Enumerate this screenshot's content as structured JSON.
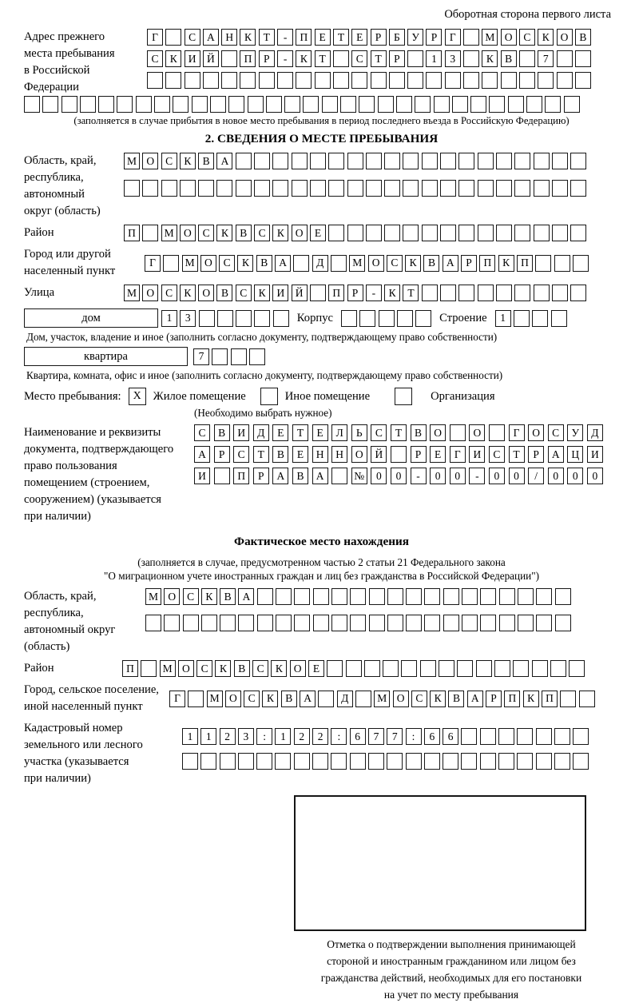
{
  "page": {
    "header_note": "Оборотная сторона первого листа"
  },
  "prev_address": {
    "label_lines": [
      "Адрес прежнего",
      "места пребывания",
      "в Российской",
      "Федерации"
    ],
    "row1": {
      "count": 24,
      "text": "Г САНКТ-ПЕТЕРБУРГ МОСКОВ"
    },
    "row2": {
      "count": 24,
      "text": "СКИЙ ПР-КТ СТР 13 КВ 7"
    },
    "row3": {
      "count": 24,
      "text": ""
    },
    "row4": {
      "count": 30,
      "text": ""
    },
    "caption": "(заполняется в случае прибытия в новое место пребывания в период последнего въезда в Российскую Федерацию)"
  },
  "section2": {
    "title": "2. СВЕДЕНИЯ О МЕСТЕ ПРЕБЫВАНИЯ",
    "region": {
      "label_lines": [
        "Область, край,",
        "республика,",
        "автономный",
        "округ (область)"
      ],
      "row1": {
        "count": 25,
        "text": "МОСКВА"
      },
      "row2": {
        "count": 25,
        "text": ""
      }
    },
    "district": {
      "label": "Район",
      "row": {
        "count": 25,
        "text": "П МОСКВСКОЕ"
      }
    },
    "city": {
      "label_lines": [
        "Город или другой",
        "населенный пункт"
      ],
      "row": {
        "count": 24,
        "text": "Г МОСКВА Д МОСКВАРПКП"
      }
    },
    "street": {
      "label": "Улица",
      "row": {
        "count": 25,
        "text": "МОСКОВСКИЙ ПР-КТ"
      }
    },
    "house": {
      "box_label": "дом",
      "house_cells": {
        "count": 7,
        "text": "13"
      },
      "korpus_label": "Корпус",
      "korpus_cells": {
        "count": 5,
        "text": ""
      },
      "stroenie_label": "Строение",
      "stroenie_cells": {
        "count": 4,
        "text": "1"
      },
      "caption": "Дом, участок, владение и иное (заполнить согласно документу, подтверждающему право собственности)"
    },
    "apartment": {
      "box_label": "квартира",
      "cells": {
        "count": 4,
        "text": "7"
      },
      "caption": "Квартира, комната, офис и иное (заполнить согласно документу, подтверждающему право собственности)"
    },
    "place_type": {
      "label": "Место пребывания:",
      "options": [
        {
          "mark": "X",
          "label": "Жилое помещение"
        },
        {
          "mark": "",
          "label": "Иное помещение"
        },
        {
          "mark": "",
          "label": "Организация"
        }
      ],
      "note": "(Необходимо выбрать нужное)"
    },
    "document": {
      "label_lines": [
        "Наименование и реквизиты",
        "документа, подтверждающего",
        "право пользования",
        "помещением (строением,",
        "сооружением) (указывается",
        "при наличии)"
      ],
      "row1": {
        "count": 21,
        "text": "СВИДЕТЕЛЬСТВО О ГОСУД"
      },
      "row2": {
        "count": 21,
        "text": "АРСТВЕННОЙ РЕГИСТРАЦИ"
      },
      "row3": {
        "count": 21,
        "text": "И ПРАВА №00-00-00/000"
      }
    }
  },
  "section3": {
    "title": "Фактическое место нахождения",
    "note_line1": "(заполняется в случае, предусмотренном частью 2 статьи 21 Федерального закона",
    "note_line2": "\"О миграционном учете иностранных граждан и лиц без гражданства в Российской Федерации\")",
    "region": {
      "label_lines": [
        "Область, край,",
        "республика,",
        "автономный округ",
        "(область)"
      ],
      "row1": {
        "count": 23,
        "text": "МОСКВА"
      },
      "row2": {
        "count": 23,
        "text": ""
      }
    },
    "district": {
      "label": "Район",
      "row": {
        "count": 25,
        "text": "П МОСКВСКОЕ"
      }
    },
    "city": {
      "label_lines": [
        "Город, сельское поселение,",
        "иной населенный пункт"
      ],
      "row": {
        "count": 23,
        "text": "Г МОСКВА Д МОСКВАРПКП"
      }
    },
    "cadastral": {
      "label_lines": [
        "Кадастровый номер",
        "земельного или лесного",
        "участка (указывается",
        "при наличии)"
      ],
      "row1": {
        "count": 22,
        "text": "1123:122:677:66"
      },
      "row2": {
        "count": 22,
        "text": ""
      }
    },
    "stamp_caption_lines": [
      "Отметка о подтверждении выполнения принимающей",
      "стороной и иностранным гражданином или лицом без",
      "гражданства действий, необходимых для его постановки",
      "на учет по месту пребывания"
    ]
  }
}
